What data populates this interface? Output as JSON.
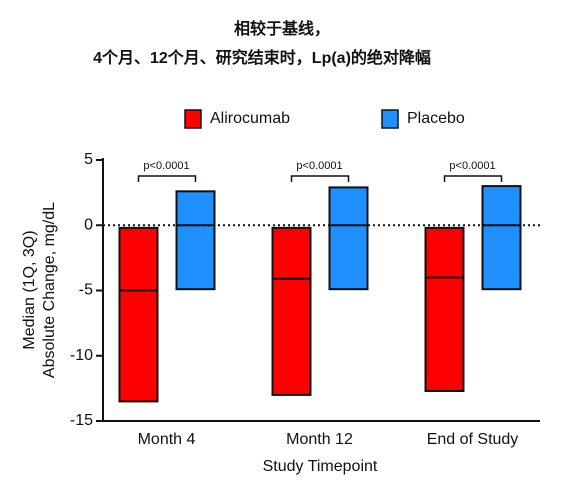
{
  "chart_data": {
    "type": "range_bar",
    "title_lines": [
      "相较于基线，",
      "4个月、12个月、研究结束时，Lp(a)的绝对降幅"
    ],
    "ylabel_lines": [
      "Median (1Q, 3Q)",
      "Absolute Change, mg/dL"
    ],
    "xlabel": "Study Timepoint",
    "categories": [
      "Month 4",
      "Month 12",
      "End of Study"
    ],
    "series": [
      {
        "name": "Alirocumab",
        "color": "#ff0000",
        "q3": [
          -0.2,
          -0.2,
          -0.2
        ],
        "median": [
          -5.0,
          -4.1,
          -4.0
        ],
        "q1": [
          -13.5,
          -13.0,
          -12.7
        ]
      },
      {
        "name": "Placebo",
        "color": "#1e90ff",
        "q3": [
          2.6,
          2.9,
          3.0
        ],
        "median": [
          0,
          0,
          0
        ],
        "q1": [
          -4.9,
          -4.9,
          -4.9
        ]
      }
    ],
    "annotations": [
      "p<0.0001",
      "p<0.0001",
      "p<0.0001"
    ],
    "reference_line": 0,
    "ylim": [
      -15,
      5
    ],
    "yticks": [
      5,
      0,
      -5,
      -10,
      -15
    ]
  }
}
